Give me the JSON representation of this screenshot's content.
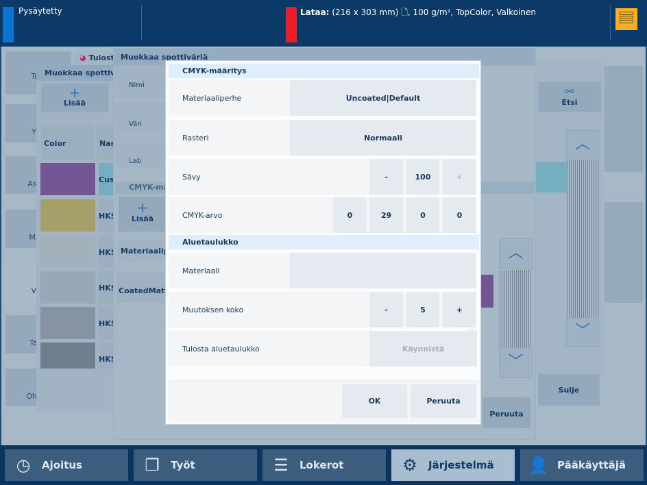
{
  "status": {
    "state": "Pysäytetty",
    "load_label": "Lataa:",
    "load_details": "(216 x 303 mm) 🗋, 100 g/m², TopColor, Valkoinen",
    "colors": {
      "state": "#0a74d0",
      "load": "#ee1c25",
      "icon": "#f7b023"
    }
  },
  "sidebar": {
    "items": [
      {
        "label": "Tulo"
      },
      {
        "label": "Yllä"
      },
      {
        "label": "Asetu"
      },
      {
        "label": "Mate"
      },
      {
        "label": "Väri"
      },
      {
        "label": "Tapa"
      },
      {
        "label": "Ohjain"
      }
    ]
  },
  "back_panel": {
    "title": "Tulost"
  },
  "spot_list": {
    "title": "Muokkaa spottivär",
    "add_label": "Lisää",
    "col_color": "Color",
    "col_name": "Nan",
    "rows": [
      {
        "name": "Cust",
        "color": "#735594"
      },
      {
        "name": "HKS",
        "color": "#a59f6a"
      },
      {
        "name": "HKS",
        "color": "#a3b1bd"
      },
      {
        "name": "HKS",
        "color": "#98a8b6"
      },
      {
        "name": "HKS",
        "color": "#8593a3"
      },
      {
        "name": "HKS",
        "color": "#6e7f8e"
      }
    ]
  },
  "spot_edit": {
    "title": "Muokkaa spottiväriä",
    "fields": [
      "Nimi",
      "Väri",
      "Lab"
    ],
    "cmyk_section": "CMYK-mää",
    "add_label": "Lisää",
    "material_family": "Materiaaliper",
    "material_value": "CoatedMatt|S",
    "cancel_label": "Peruuta"
  },
  "right_panel": {
    "search_label": "Etsi",
    "close_label": "Sulje"
  },
  "dialog": {
    "section1": "CMYK-määritys",
    "material_family": {
      "label": "Materiaaliperhe",
      "value": "Uncoated|Default"
    },
    "screening": {
      "label": "Rasteri",
      "value": "Normaali"
    },
    "tint": {
      "label": "Sävy",
      "minus": "-",
      "value": "100",
      "plus": "+"
    },
    "cmyk": {
      "label": "CMYK-arvo",
      "c": "0",
      "m": "29",
      "y": "0",
      "k": "0"
    },
    "section2": "Aluetaulukko",
    "material": {
      "label": "Materiaali",
      "value": ""
    },
    "step": {
      "label": "Muutoksen koko",
      "minus": "-",
      "value": "5",
      "plus": "+"
    },
    "print_chart": {
      "label": "Tulosta aluetaulukko",
      "button": "Käynnistä"
    },
    "ok": "OK",
    "cancel": "Peruuta"
  },
  "nav": [
    {
      "label": "Ajoitus",
      "icon": "clock-icon"
    },
    {
      "label": "Työt",
      "icon": "jobs-icon"
    },
    {
      "label": "Lokerot",
      "icon": "trays-icon"
    },
    {
      "label": "Järjestelmä",
      "icon": "gear-icon",
      "active": true
    },
    {
      "label": "Pääkäyttäjä",
      "icon": "user-key-icon"
    }
  ]
}
